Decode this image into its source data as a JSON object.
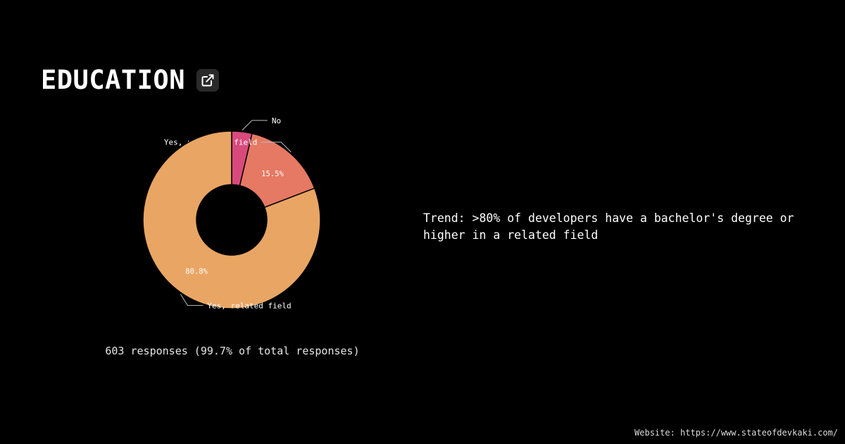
{
  "header": {
    "title": "EDUCATION",
    "link_icon": "external-link-icon"
  },
  "chart_data": {
    "type": "pie",
    "style": "donut",
    "categories": [
      "No",
      "Yes, unrelated field",
      "Yes, related field"
    ],
    "values": [
      3.7,
      15.5,
      80.8
    ],
    "labels": [
      "",
      "15.5%",
      "80.8%"
    ],
    "colors": [
      "#d84a7c",
      "#e57963",
      "#e9a563"
    ]
  },
  "footer": {
    "responses": "603 responses (99.7% of total responses)"
  },
  "trend": {
    "text": "Trend: >80% of developers have a bachelor's degree or higher in a related field"
  },
  "website": {
    "text": "Website: https://www.stateofdevkaki.com/"
  }
}
